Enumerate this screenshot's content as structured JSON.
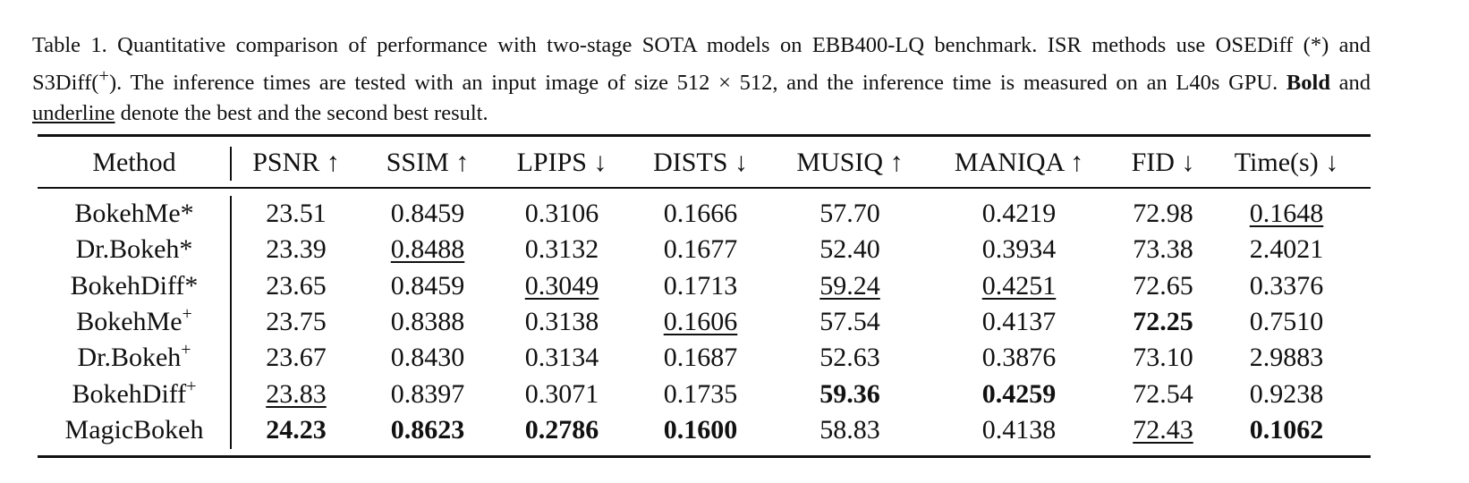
{
  "caption": {
    "label": "Table 1.",
    "text1": " Quantitative comparison of performance with two-stage SOTA models on EBB400-LQ benchmark. ISR methods use OSEDiff (*) and S3Diff(",
    "sup": "+",
    "text2": "). The inference times are tested with an input image of size 512 × 512, and the inference time is measured on an L40s GPU. ",
    "bold": "Bold",
    "text3": " and ",
    "underline": "underline",
    "text4": " denote the best and the second best result."
  },
  "table": {
    "header": [
      "Method",
      "PSNR ↑",
      "SSIM ↑",
      "LPIPS ↓",
      "DISTS ↓",
      "MUSIQ ↑",
      "MANIQA ↑",
      "FID ↓",
      "Time(s) ↓"
    ],
    "rows": [
      {
        "method": "BokehMe",
        "suffix": "*",
        "superscript": false,
        "values": [
          "23.51",
          "0.8459",
          "0.3106",
          "0.1666",
          "57.70",
          "0.4219",
          "72.98",
          "0.1648"
        ],
        "best": [],
        "second": [
          7
        ]
      },
      {
        "method": "Dr.Bokeh",
        "suffix": "*",
        "superscript": false,
        "values": [
          "23.39",
          "0.8488",
          "0.3132",
          "0.1677",
          "52.40",
          "0.3934",
          "73.38",
          "2.4021"
        ],
        "best": [],
        "second": [
          1
        ]
      },
      {
        "method": "BokehDiff",
        "suffix": "*",
        "superscript": false,
        "values": [
          "23.65",
          "0.8459",
          "0.3049",
          "0.1713",
          "59.24",
          "0.4251",
          "72.65",
          "0.3376"
        ],
        "best": [],
        "second": [
          2,
          4,
          5
        ]
      },
      {
        "method": "BokehMe",
        "suffix": "+",
        "superscript": true,
        "values": [
          "23.75",
          "0.8388",
          "0.3138",
          "0.1606",
          "57.54",
          "0.4137",
          "72.25",
          "0.7510"
        ],
        "best": [
          6
        ],
        "second": [
          3
        ]
      },
      {
        "method": "Dr.Bokeh",
        "suffix": "+",
        "superscript": true,
        "values": [
          "23.67",
          "0.8430",
          "0.3134",
          "0.1687",
          "52.63",
          "0.3876",
          "73.10",
          "2.9883"
        ],
        "best": [],
        "second": []
      },
      {
        "method": "BokehDiff",
        "suffix": "+",
        "superscript": true,
        "values": [
          "23.83",
          "0.8397",
          "0.3071",
          "0.1735",
          "59.36",
          "0.4259",
          "72.54",
          "0.9238"
        ],
        "best": [
          4,
          5
        ],
        "second": [
          0
        ]
      },
      {
        "method": "MagicBokeh",
        "values": [
          "24.23",
          "0.8623",
          "0.2786",
          "0.1600",
          "58.83",
          "0.4138",
          "72.43",
          "0.1062"
        ],
        "best": [
          0,
          1,
          2,
          3,
          7
        ],
        "second": [
          6
        ]
      }
    ]
  }
}
